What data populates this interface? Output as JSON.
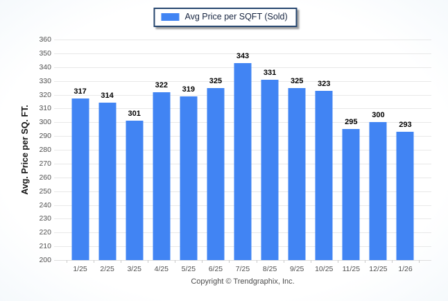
{
  "legend": {
    "label": "Avg Price per SQFT (Sold)",
    "swatch_color": "#4184f3"
  },
  "footer": {
    "text": "Copyright © Trendgraphix, Inc."
  },
  "chart_data": {
    "type": "bar",
    "title": "",
    "categories": [
      "1/25",
      "2/25",
      "3/25",
      "4/25",
      "5/25",
      "6/25",
      "7/25",
      "8/25",
      "9/25",
      "10/25",
      "11/25",
      "12/25",
      "1/26"
    ],
    "series": [
      {
        "name": "Avg Price per SQFT (Sold)",
        "color": "#4184f3",
        "values": [
          317,
          314,
          301,
          322,
          319,
          325,
          343,
          331,
          325,
          323,
          295,
          300,
          293
        ]
      }
    ],
    "xlabel": "",
    "ylabel": "Avg. Price per SQ. FT.",
    "ylim": [
      200,
      360
    ],
    "ytick_step": 10,
    "grid": true,
    "legend_position": "top-center",
    "bar_value_labels": true
  }
}
